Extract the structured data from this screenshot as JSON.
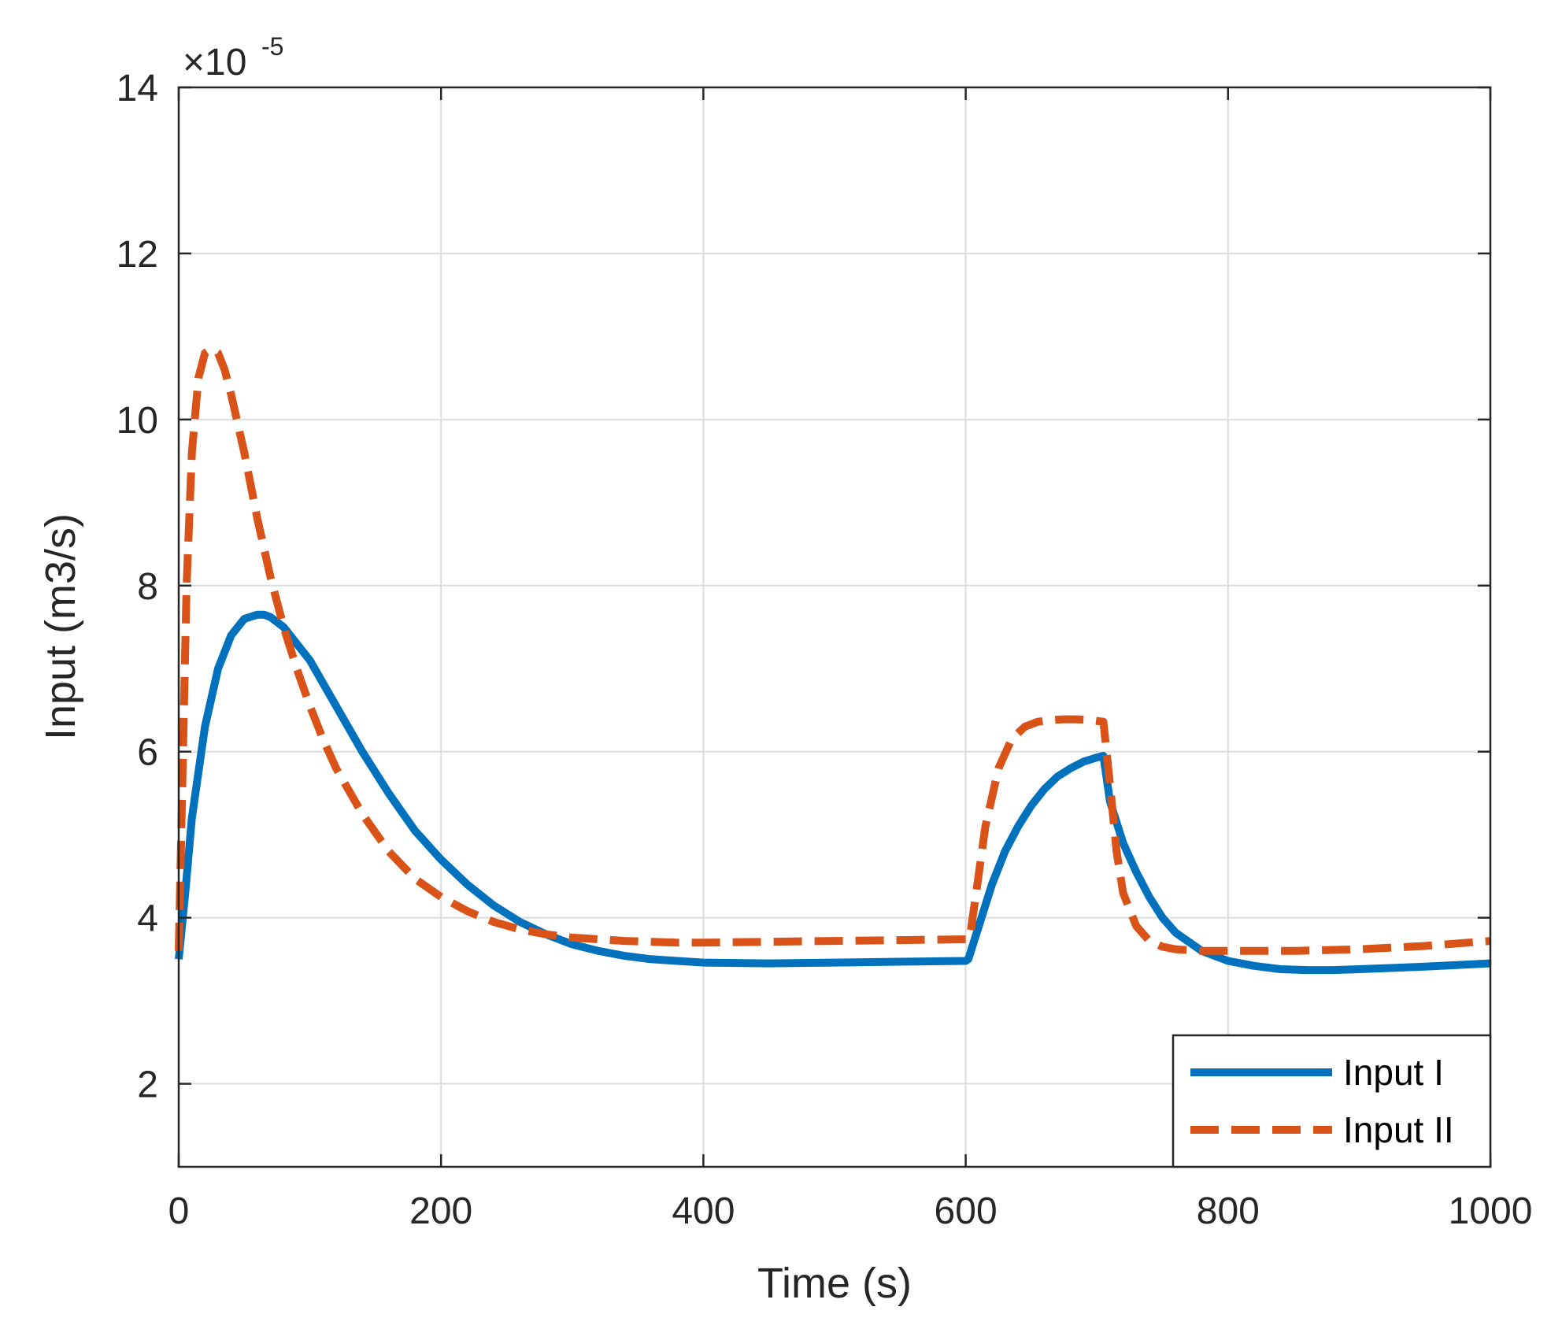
{
  "chart_data": {
    "type": "line",
    "xlabel": "Time (s)",
    "ylabel": "Input (m3/s)",
    "y_multiplier": "×10",
    "y_exponent": "-5",
    "xlim": [
      0,
      1000
    ],
    "ylim": [
      1,
      14
    ],
    "x_ticks": [
      0,
      200,
      400,
      600,
      800,
      1000
    ],
    "y_ticks": [
      2,
      4,
      6,
      8,
      10,
      12,
      14
    ],
    "x_tick_labels": [
      "0",
      "200",
      "400",
      "600",
      "800",
      "1000"
    ],
    "y_tick_labels": [
      "2",
      "4",
      "6",
      "8",
      "10",
      "12",
      "14"
    ],
    "grid": true,
    "legend_position": "bottom-right",
    "series": [
      {
        "name": "Input I",
        "color": "#0072BD",
        "style": "solid",
        "x": [
          0,
          5,
          10,
          20,
          30,
          40,
          50,
          60,
          65,
          70,
          80,
          90,
          100,
          120,
          140,
          160,
          180,
          200,
          220,
          240,
          260,
          280,
          300,
          320,
          340,
          360,
          380,
          400,
          450,
          500,
          550,
          600,
          602,
          610,
          620,
          630,
          640,
          650,
          660,
          670,
          680,
          690,
          700,
          705,
          710,
          720,
          730,
          740,
          750,
          760,
          780,
          800,
          820,
          840,
          860,
          880,
          900,
          950,
          1000
        ],
        "values": [
          3.5,
          4.3,
          5.2,
          6.3,
          7.0,
          7.4,
          7.6,
          7.65,
          7.65,
          7.62,
          7.5,
          7.3,
          7.1,
          6.55,
          6.0,
          5.5,
          5.05,
          4.7,
          4.4,
          4.15,
          3.95,
          3.8,
          3.68,
          3.6,
          3.54,
          3.5,
          3.48,
          3.46,
          3.45,
          3.46,
          3.47,
          3.48,
          3.5,
          3.9,
          4.4,
          4.8,
          5.1,
          5.35,
          5.55,
          5.7,
          5.8,
          5.88,
          5.93,
          5.95,
          5.4,
          4.9,
          4.55,
          4.25,
          4.0,
          3.82,
          3.6,
          3.48,
          3.42,
          3.38,
          3.37,
          3.37,
          3.38,
          3.41,
          3.45
        ]
      },
      {
        "name": "Input II",
        "color": "#D95319",
        "style": "dashed",
        "x": [
          0,
          3,
          6,
          10,
          15,
          20,
          25,
          30,
          35,
          40,
          50,
          60,
          70,
          80,
          90,
          100,
          110,
          120,
          140,
          160,
          180,
          200,
          220,
          240,
          260,
          280,
          300,
          320,
          340,
          360,
          380,
          400,
          450,
          500,
          550,
          600,
          603,
          608,
          615,
          625,
          635,
          645,
          655,
          665,
          675,
          685,
          695,
          700,
          705,
          710,
          715,
          720,
          730,
          740,
          750,
          760,
          780,
          800,
          850,
          900,
          950,
          1000
        ],
        "values": [
          3.6,
          5.8,
          8.0,
          9.6,
          10.5,
          10.8,
          10.85,
          10.8,
          10.6,
          10.3,
          9.6,
          8.8,
          8.1,
          7.5,
          7.0,
          6.55,
          6.15,
          5.8,
          5.25,
          4.8,
          4.47,
          4.25,
          4.08,
          3.95,
          3.86,
          3.8,
          3.76,
          3.74,
          3.72,
          3.71,
          3.7,
          3.7,
          3.71,
          3.72,
          3.73,
          3.74,
          3.75,
          4.3,
          5.1,
          5.8,
          6.15,
          6.3,
          6.36,
          6.38,
          6.39,
          6.39,
          6.38,
          6.37,
          6.36,
          5.6,
          4.8,
          4.3,
          3.9,
          3.72,
          3.65,
          3.62,
          3.6,
          3.6,
          3.6,
          3.62,
          3.66,
          3.72
        ]
      }
    ]
  }
}
